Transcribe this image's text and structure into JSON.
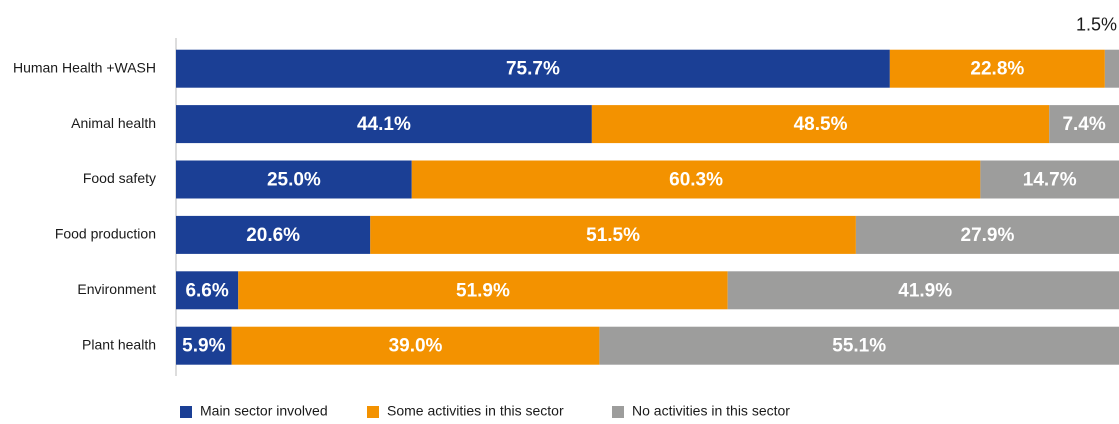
{
  "chart_data": {
    "type": "stacked_bar_horizontal",
    "categories": [
      "Human Health +WASH",
      "Animal health",
      "Food safety",
      "Food production",
      "Environment",
      "Plant health"
    ],
    "series": [
      {
        "name": "Main sector involved",
        "color": "#1b3f95",
        "values": [
          75.7,
          44.1,
          25.0,
          20.6,
          6.6,
          5.9
        ],
        "value_labels": [
          "75.7%",
          "44.1%",
          "25.0%",
          "20.6%",
          "6.6%",
          "5.9%"
        ]
      },
      {
        "name": "Some activities in this sector",
        "color": "#f39200",
        "values": [
          22.8,
          48.5,
          60.3,
          51.5,
          51.9,
          39.0
        ],
        "value_labels": [
          "22.8%",
          "48.5%",
          "60.3%",
          "51.5%",
          "51.9%",
          "39.0%"
        ]
      },
      {
        "name": "No activities in this sector",
        "color": "#9d9d9c",
        "values": [
          1.5,
          7.4,
          14.7,
          27.9,
          41.9,
          55.1
        ],
        "value_labels": [
          "1.5%",
          "7.4%",
          "14.7%",
          "27.9%",
          "41.9%",
          "55.1%"
        ]
      }
    ],
    "legend": "bottom"
  }
}
